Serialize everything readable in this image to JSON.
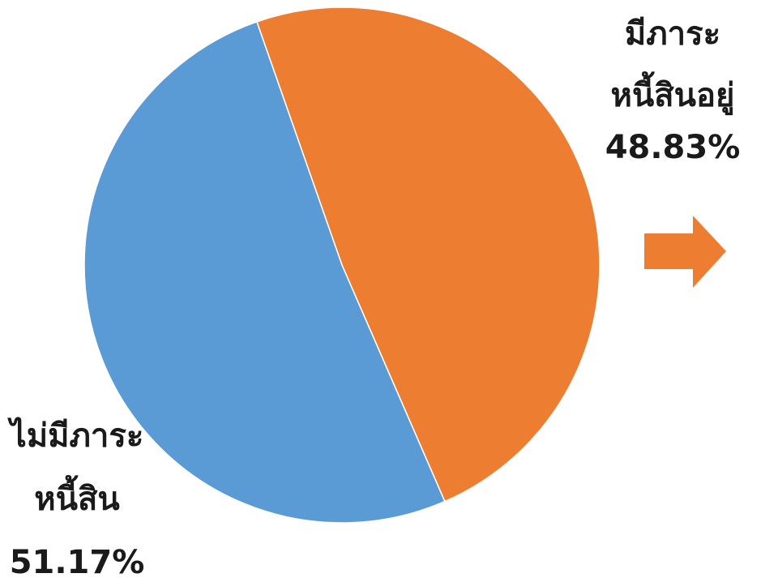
{
  "chart_data": {
    "type": "pie",
    "slices": [
      {
        "label_line1": "ไม่มีภาระ",
        "label_line2": "หนี้สิน",
        "value": 51.17,
        "value_text": "51.17%",
        "color": "#5B9BD5"
      },
      {
        "label_line1": "มีภาระ",
        "label_line2": "หนี้สินอยู่",
        "value": 48.83,
        "value_text": "48.83%",
        "color": "#ED7D31"
      }
    ]
  },
  "arrow_color": "#ED7D31"
}
